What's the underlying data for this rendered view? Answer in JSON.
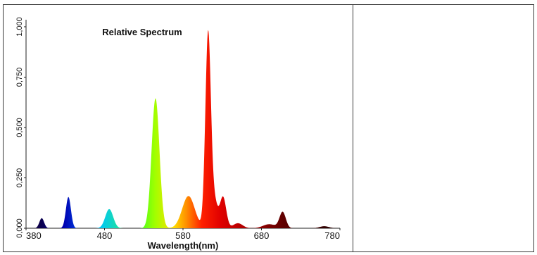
{
  "chart_data": {
    "type": "area",
    "title": "Relative Spectrum",
    "xlabel": "Wavelength(nm)",
    "ylabel": "",
    "xlim": [
      380,
      780
    ],
    "ylim": [
      0,
      1.0
    ],
    "x_ticks": [
      "380",
      "480",
      "580",
      "680",
      "780"
    ],
    "y_ticks": [
      "0,000",
      "0,250",
      "0,500",
      "0,750",
      "1,000"
    ],
    "fill": "wavelength-color-gradient",
    "peaks": [
      {
        "x": 400,
        "y": 0.05
      },
      {
        "x": 434,
        "y": 0.155
      },
      {
        "x": 486,
        "y": 0.095
      },
      {
        "x": 545,
        "y": 0.645
      },
      {
        "x": 587,
        "y": 0.16
      },
      {
        "x": 612,
        "y": 0.965
      },
      {
        "x": 620,
        "y": 0.13
      },
      {
        "x": 631,
        "y": 0.155
      },
      {
        "x": 650,
        "y": 0.025
      },
      {
        "x": 690,
        "y": 0.02
      },
      {
        "x": 707,
        "y": 0.08
      },
      {
        "x": 760,
        "y": 0.01
      }
    ]
  }
}
